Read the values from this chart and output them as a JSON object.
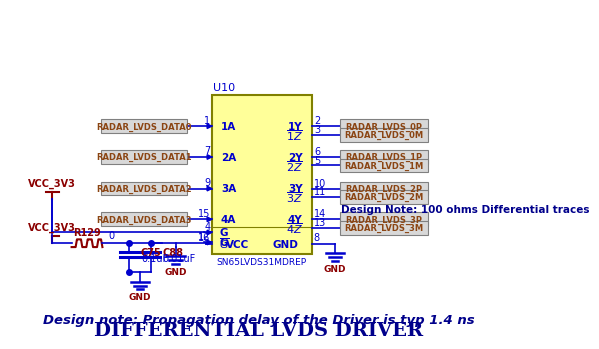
{
  "title": "DIFFERENTIAL LVDS DRIVER",
  "title_color": "#00008B",
  "bg_color": "#FFFFFF",
  "chip_color": "#FFFF99",
  "chip_border_color": "#808000",
  "chip_label": "U10",
  "chip_part": "SN65LVDS31MDREP",
  "wire_color": "#0000CD",
  "text_color_red": "#8B0000",
  "text_color_brown": "#8B4513",
  "text_color_blue": "#0000CD",
  "text_color_dark_blue": "#00008B",
  "left_labels": [
    "RADAR_LVDS_DATA0",
    "RADAR_LVDS_DATA1",
    "RADAR_LVDS_DATA2",
    "RADAR_LVDS_DATA3"
  ],
  "left_pins": [
    "1A",
    "2A",
    "3A",
    "4A"
  ],
  "left_pin_nums": [
    "1",
    "7",
    "9",
    "15"
  ],
  "right_top_names": [
    "1Y",
    "2Y",
    "3Y",
    "4Y"
  ],
  "right_bot_names": [
    "1Z",
    "2Z",
    "3Z",
    "4Z"
  ],
  "right_nums_top": [
    "2",
    "6",
    "10",
    "14"
  ],
  "right_nums_bot": [
    "3",
    "5",
    "11",
    "13"
  ],
  "right_labels_top": [
    "RADAR_LVDS_0P",
    "RADAR_LVDS_1P",
    "RADAR_LVDS_2P",
    "RADAR_LVDS_3P"
  ],
  "right_labels_bot": [
    "RADAR_LVDS_0M",
    "RADAR_LVDS_1M",
    "RADAR_LVDS_2M",
    "RADAR_LVDS_3M"
  ],
  "design_note1": "Design Note: 100 ohms Differential traces",
  "design_note2": "Design note: Propagation delay of the Driver is typ 1.4 ns",
  "vcc_label": "VCC_3V3",
  "r129_label": "R129",
  "r129_val": "0",
  "c75_label": "C75",
  "c75_val": "0.1uF",
  "c88_label": "C88",
  "c88_val": "0.01uF",
  "gnd_label": "GND"
}
